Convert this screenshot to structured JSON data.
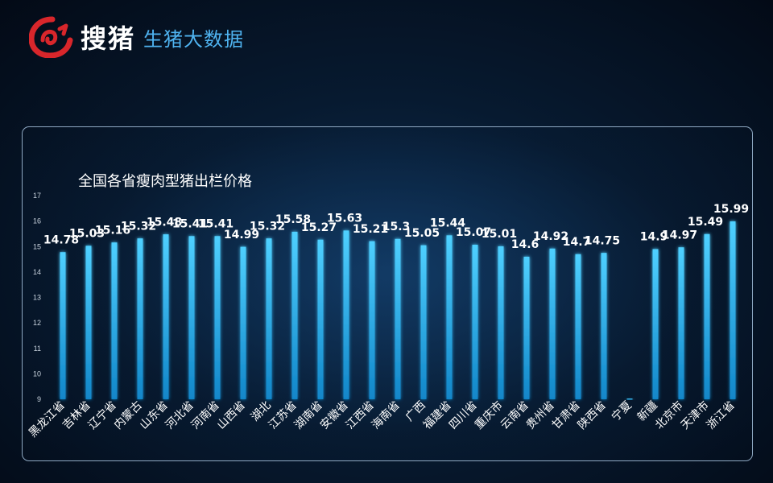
{
  "header": {
    "brand": "搜猪",
    "subtitle": "生猪大数据",
    "logo_icon": "brand-logo-icon"
  },
  "colors": {
    "bar": "#1aa3e6",
    "bar_glow": "#3cc8ff",
    "label": "#ffffff",
    "tick": "#c9d3de"
  },
  "chart_data": {
    "type": "bar",
    "title": "全国各省瘦肉型猪出栏价格",
    "xlabel": "",
    "ylabel": "",
    "ylim": [
      9,
      17
    ],
    "yticks": [
      9,
      10,
      11,
      12,
      13,
      14,
      15,
      16,
      17
    ],
    "grid": false,
    "categories": [
      "黑龙江省",
      "吉林省",
      "辽宁省",
      "内蒙古",
      "山东省",
      "河北省",
      "河南省",
      "山西省",
      "湖北",
      "江苏省",
      "湖南省",
      "安徽省",
      "江西省",
      "海南省",
      "广西",
      "福建省",
      "四川省",
      "重庆市",
      "云南省",
      "贵州省",
      "甘肃省",
      "陕西省",
      "宁夏",
      "新疆",
      "北京市",
      "天津市",
      "浙江省"
    ],
    "values": [
      14.78,
      15.03,
      15.16,
      15.32,
      15.48,
      15.41,
      15.41,
      14.99,
      15.32,
      15.58,
      15.27,
      15.63,
      15.21,
      15.3,
      15.05,
      15.44,
      15.07,
      15.01,
      14.6,
      14.92,
      14.7,
      14.75,
      null,
      14.9,
      14.97,
      15.49,
      15.99
    ],
    "data_labels": [
      "14.78",
      "15.03",
      "15.16",
      "15.32",
      "15.48",
      "15.41",
      "15.41",
      "14.99",
      "15.32",
      "15.58",
      "15.27",
      "15.63",
      "15.21",
      "15.3",
      "15.05",
      "15.44",
      "15.07",
      "15.01",
      "14.6",
      "14.92",
      "14.7",
      "14.75",
      "",
      "14.9",
      "14.97",
      "15.49",
      "15.99"
    ]
  }
}
